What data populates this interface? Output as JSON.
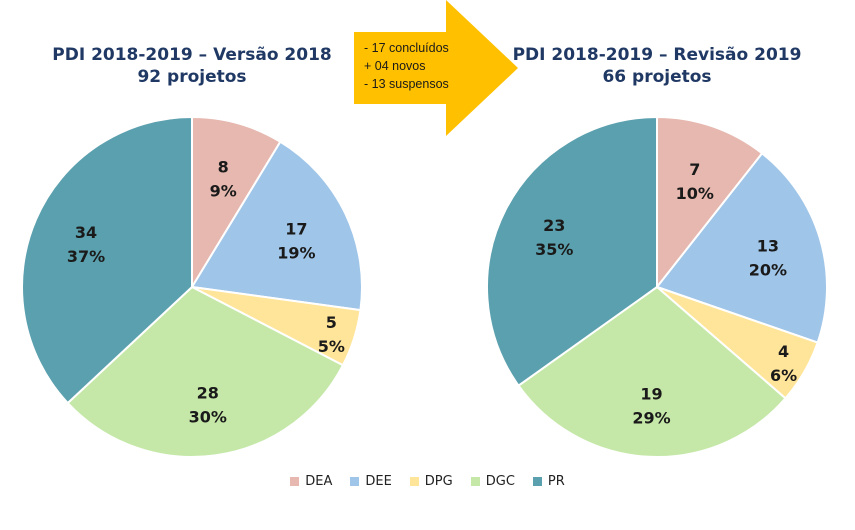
{
  "arrow": {
    "lines": [
      "- 17 concluídos",
      "+ 04 novos",
      "- 13 suspensos"
    ],
    "color": "#ffc000"
  },
  "legend": [
    {
      "label": "DEA",
      "color": "#e6b8af"
    },
    {
      "label": "DEE",
      "color": "#9fc5e8"
    },
    {
      "label": "DPG",
      "color": "#ffe599"
    },
    {
      "label": "DGC",
      "color": "#c5e8a8"
    },
    {
      "label": "PR",
      "color": "#5ba0ae"
    }
  ],
  "chart_data": [
    {
      "type": "pie",
      "title": "PDI 2018-2019 – Versão 2018",
      "subtitle": "92 projetos",
      "categories": [
        "DEA",
        "DEE",
        "DPG",
        "DGC",
        "PR"
      ],
      "values": [
        8,
        17,
        5,
        28,
        34
      ],
      "percent_labels": [
        "9%",
        "19%",
        "5%",
        "30%",
        "37%"
      ],
      "legend_position": "bottom"
    },
    {
      "type": "pie",
      "title": "PDI 2018-2019 – Revisão 2019",
      "subtitle": "66 projetos",
      "categories": [
        "DEA",
        "DEE",
        "DPG",
        "DGC",
        "PR"
      ],
      "values": [
        7,
        13,
        4,
        19,
        23
      ],
      "percent_labels": [
        "10%",
        "20%",
        "6%",
        "29%",
        "35%"
      ],
      "legend_position": "bottom"
    }
  ]
}
